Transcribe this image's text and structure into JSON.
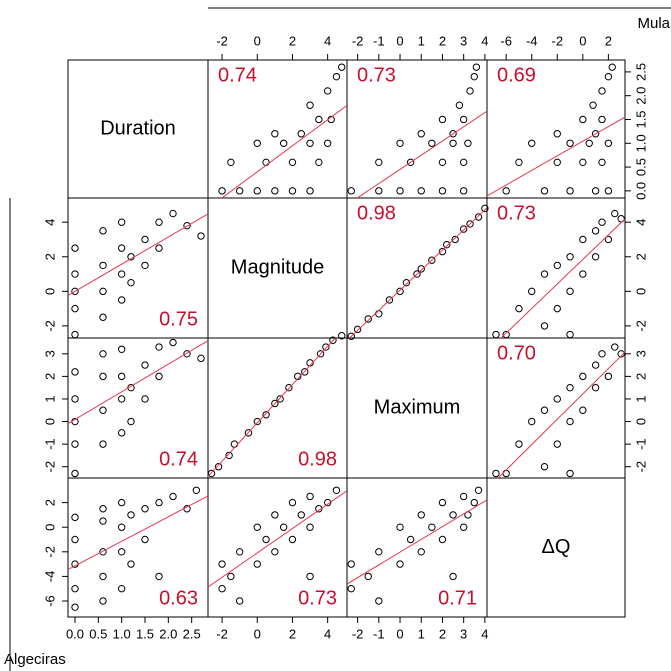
{
  "top_label": "Mula",
  "left_label": "Algeciras",
  "diagonal_labels": [
    "Duration",
    "Magnitude",
    "Maximum",
    "ΔQ"
  ],
  "x_axes": [
    {
      "xlim": [
        -0.15,
        2.85
      ],
      "xticks": [
        {
          "value": 0,
          "label": "0.0"
        },
        0.5,
        {
          "value": 1,
          "label": "1.0"
        },
        1.5,
        {
          "value": 2,
          "label": "2.0"
        },
        2.5
      ]
    },
    {
      "xlim": [
        -2.8,
        5.1
      ],
      "xticks": [
        -2,
        0,
        2,
        4
      ]
    },
    {
      "xlim": [
        -2.5,
        4.1
      ],
      "xticks": [
        -2,
        -1,
        0,
        1,
        2,
        3,
        4
      ]
    },
    {
      "xlim": [
        -7.5,
        3.3
      ],
      "xticks": [
        -6,
        -4,
        -2,
        0,
        2
      ]
    }
  ],
  "y_axes": [
    {
      "ylim": [
        -0.15,
        2.75
      ],
      "yticks": [
        {
          "value": 0,
          "label": "0.0"
        },
        0.5,
        {
          "value": 1,
          "label": "1.0"
        },
        1.5,
        {
          "value": 2,
          "label": "2.0"
        },
        2.5
      ]
    },
    {
      "ylim": [
        -2.7,
        5.4
      ],
      "yticks": [
        -2,
        0,
        2,
        4
      ]
    },
    {
      "ylim": [
        -2.5,
        3.7
      ],
      "yticks": [
        -2,
        -1,
        0,
        1,
        2,
        3
      ]
    },
    {
      "ylim": [
        -7.3,
        4.0
      ],
      "yticks": [
        -6,
        -4,
        -2,
        0,
        2
      ]
    }
  ],
  "chart_data": [
    {
      "type": "scatter",
      "annotation": "0.74",
      "x": [
        -2,
        -1,
        0,
        1,
        2,
        3,
        -1.5,
        0.5,
        2,
        3.5,
        0,
        1.5,
        3,
        4,
        1,
        2.5,
        3.5,
        4.2,
        3,
        4,
        4.5,
        4.8
      ],
      "y": [
        0,
        0,
        0,
        0,
        0,
        0,
        0.6,
        0.6,
        0.6,
        0.6,
        1.0,
        1.0,
        1.0,
        1.0,
        1.2,
        1.2,
        1.5,
        1.5,
        1.8,
        2.1,
        2.4,
        2.6
      ]
    },
    {
      "type": "scatter",
      "annotation": "0.73",
      "x": [
        -2.3,
        -1,
        0,
        1,
        2,
        3,
        -1,
        0.5,
        2,
        3,
        0,
        1.5,
        2.5,
        3.2,
        1,
        2.5,
        2,
        3,
        2.8,
        3.3,
        3.5,
        3.6
      ],
      "y": [
        0,
        0,
        0,
        0,
        0,
        0,
        0.6,
        0.6,
        0.6,
        0.6,
        1.0,
        1.0,
        1.0,
        1.0,
        1.2,
        1.2,
        1.5,
        1.5,
        1.8,
        2.1,
        2.4,
        2.6
      ]
    },
    {
      "type": "scatter",
      "annotation": "0.69",
      "x": [
        -6,
        -3,
        -1,
        1,
        2,
        -5,
        -2,
        0,
        1.5,
        -4,
        -1,
        0.5,
        2,
        -2,
        1,
        0,
        1.5,
        0.8,
        1.5,
        2,
        2.3
      ],
      "y": [
        0,
        0,
        0,
        0,
        0,
        0.6,
        0.6,
        0.6,
        0.6,
        1.0,
        1.0,
        1.0,
        1.0,
        1.2,
        1.2,
        1.5,
        1.5,
        1.8,
        2.1,
        2.4,
        2.6
      ]
    },
    {
      "type": "scatter",
      "annotation": "0.75",
      "x": [
        0,
        0,
        0,
        0,
        0,
        0.6,
        0.6,
        0.6,
        0.6,
        1.0,
        1.0,
        1.0,
        1.0,
        1.2,
        1.2,
        1.5,
        1.5,
        1.8,
        1.8,
        2.1,
        2.4,
        2.7
      ],
      "y": [
        -2.5,
        -1,
        0,
        1,
        2.5,
        -1.5,
        0,
        1.5,
        3.5,
        -0.5,
        1,
        2.5,
        4,
        0.5,
        2,
        1.5,
        3,
        2.5,
        4,
        4.5,
        3.8,
        3.2
      ]
    },
    {
      "type": "scatter",
      "annotation": "0.98",
      "x": [
        -2.3,
        -2,
        -1.5,
        -1,
        -0.5,
        0,
        0.3,
        0.8,
        1,
        1.5,
        2,
        2.2,
        2.6,
        3,
        3.3,
        3.7,
        4
      ],
      "y": [
        -2.6,
        -2.2,
        -1.6,
        -1.3,
        -0.5,
        0,
        0.5,
        1,
        1.3,
        1.8,
        2.3,
        2.7,
        3,
        3.6,
        3.9,
        4.3,
        4.8
      ]
    },
    {
      "type": "scatter",
      "annotation": "0.73",
      "x": [
        -6,
        -5,
        -4,
        -3,
        -3,
        -2,
        -2,
        -1,
        -1,
        0,
        0,
        1,
        1,
        1.5,
        2,
        2.5,
        3,
        -6.8,
        -1
      ],
      "y": [
        -2.5,
        -1,
        0,
        -2,
        1,
        -1,
        1.5,
        0,
        2,
        1,
        3,
        2,
        3.5,
        4,
        3,
        4.5,
        4.2,
        -2.5,
        -2.5
      ]
    },
    {
      "type": "scatter",
      "annotation": "0.74",
      "x": [
        0,
        0,
        0,
        0,
        0,
        0.6,
        0.6,
        0.6,
        0.6,
        1.0,
        1.0,
        1.0,
        1.0,
        1.2,
        1.2,
        1.5,
        1.5,
        1.8,
        1.8,
        2.1,
        2.4,
        2.7
      ],
      "y": [
        -2.3,
        -1,
        0,
        1,
        2.2,
        -1,
        0.5,
        2,
        3,
        -0.5,
        1,
        2,
        3.2,
        0,
        1.5,
        1,
        2.5,
        2,
        3.3,
        3.5,
        3,
        2.8
      ]
    },
    {
      "type": "scatter",
      "annotation": "0.98",
      "x": [
        -2.6,
        -2.2,
        -1.6,
        -1.3,
        -0.5,
        0,
        0.5,
        1,
        1.3,
        1.8,
        2.3,
        2.7,
        3,
        3.6,
        3.9,
        4.3,
        4.8
      ],
      "y": [
        -2.3,
        -2,
        -1.5,
        -1,
        -0.5,
        0,
        0.3,
        0.8,
        1,
        1.5,
        2,
        2.2,
        2.6,
        3,
        3.3,
        3.6,
        3.8
      ]
    },
    {
      "type": "scatter",
      "annotation": "0.70",
      "x": [
        -6,
        -5,
        -4,
        -3,
        -3,
        -2,
        -2,
        -1,
        -1,
        0,
        0,
        1,
        1,
        1.5,
        2,
        2.5,
        3,
        -6.8,
        -1
      ],
      "y": [
        -2.3,
        -1,
        0,
        -2,
        0.5,
        -1,
        1,
        0,
        1.5,
        0.5,
        2,
        1.5,
        2.5,
        3,
        2,
        3.3,
        3,
        -2.3,
        -2.3
      ]
    },
    {
      "type": "scatter",
      "annotation": "0.63",
      "x": [
        0,
        0,
        0,
        0,
        0,
        0.6,
        0.6,
        0.6,
        0.6,
        0.6,
        1.0,
        1.0,
        1.0,
        1.0,
        1.2,
        1.2,
        1.5,
        1.5,
        1.8,
        1.8,
        2.1,
        2.4,
        2.6
      ],
      "y": [
        -6.5,
        -5,
        -3,
        -1,
        0.8,
        -6,
        -4,
        -2,
        0.5,
        1.5,
        -5,
        -2,
        0,
        2,
        -3,
        1,
        -1,
        1.5,
        -4,
        2,
        2.5,
        1.5,
        3
      ]
    },
    {
      "type": "scatter",
      "annotation": "0.73",
      "x": [
        -2,
        -2,
        -1.5,
        -1,
        -1,
        0,
        0,
        0.5,
        1,
        1,
        1.5,
        2,
        2,
        2.5,
        3,
        3,
        3.5,
        4,
        4.5,
        3
      ],
      "y": [
        -5,
        -3,
        -4,
        -2,
        -6,
        -3,
        0,
        -1,
        -2,
        1,
        0,
        -1,
        2,
        1,
        0,
        2.5,
        1.5,
        2,
        3,
        -4
      ]
    },
    {
      "type": "scatter",
      "annotation": "0.71",
      "x": [
        -2.3,
        -2.3,
        -1.5,
        -1,
        -1,
        0,
        0,
        0.5,
        1,
        1,
        1.5,
        2,
        2,
        2.5,
        3,
        3,
        3.2,
        3.5,
        3.7,
        2.5
      ],
      "y": [
        -5,
        -3,
        -4,
        -2,
        -6,
        -3,
        0,
        -1,
        -2,
        1,
        0,
        -1,
        2,
        1,
        0,
        2.5,
        1,
        2,
        3,
        -4
      ]
    }
  ]
}
